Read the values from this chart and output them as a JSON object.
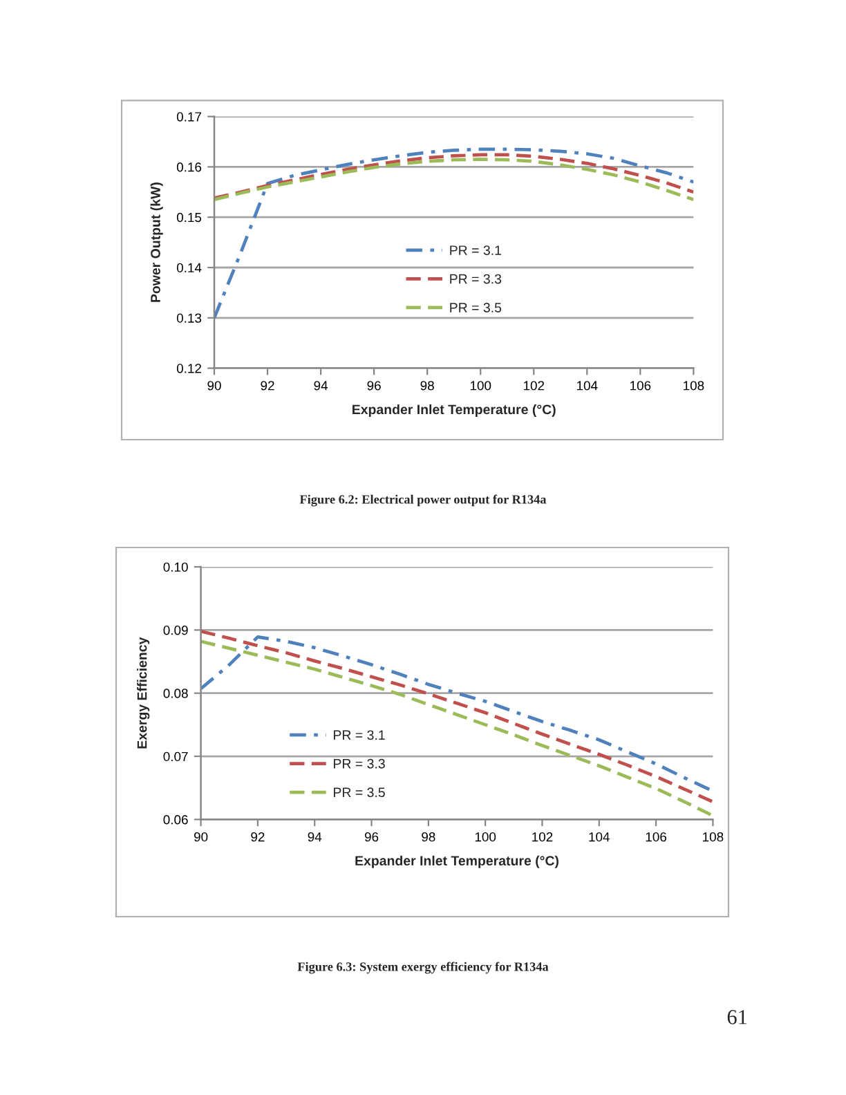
{
  "chart_data": [
    {
      "type": "line",
      "xlabel": "Expander Inlet Temperature (°C)",
      "ylabel": "Power Output (kW)",
      "x": [
        90,
        91,
        92,
        93,
        94,
        95,
        96,
        97,
        98,
        99,
        100,
        101,
        102,
        103,
        104,
        105,
        106,
        107,
        108
      ],
      "series": [
        {
          "name": "PR = 3.1",
          "color": "#4f81bd",
          "line_style": "dashdot",
          "values": [
            0.13,
            0.143,
            0.1567,
            0.1583,
            0.1594,
            0.1605,
            0.1614,
            0.1622,
            0.1629,
            0.1633,
            0.1635,
            0.1635,
            0.1634,
            0.1631,
            0.1626,
            0.1617,
            0.1602,
            0.1588,
            0.157
          ]
        },
        {
          "name": "PR = 3.3",
          "color": "#c0504d",
          "line_style": "dashed",
          "values": [
            0.1538,
            0.155,
            0.1563,
            0.1574,
            0.1585,
            0.1595,
            0.1604,
            0.1612,
            0.1618,
            0.1622,
            0.1624,
            0.1624,
            0.1621,
            0.1615,
            0.1607,
            0.1596,
            0.1583,
            0.1568,
            0.155
          ]
        },
        {
          "name": "PR = 3.5",
          "color": "#9bbb59",
          "line_style": "dashed",
          "values": [
            0.1535,
            0.1548,
            0.156,
            0.157,
            0.158,
            0.159,
            0.1599,
            0.1606,
            0.1611,
            0.1614,
            0.1615,
            0.1614,
            0.1611,
            0.1604,
            0.1595,
            0.1584,
            0.157,
            0.1553,
            0.1535
          ]
        }
      ],
      "xlim": [
        90,
        108
      ],
      "xticks": [
        90,
        92,
        94,
        96,
        98,
        100,
        102,
        104,
        106,
        108
      ],
      "ylim": [
        0.12,
        0.17
      ],
      "yticks": [
        0.12,
        0.13,
        0.14,
        0.15,
        0.16,
        0.17
      ],
      "grid": "y",
      "legend": "center",
      "annotations": [
        "Figure 6.2: Electrical power output for R134a"
      ]
    },
    {
      "type": "line",
      "xlabel": "Expander Inlet Temperature (°C)",
      "ylabel": "Exergy Efficiency",
      "x": [
        90,
        91,
        92,
        93,
        94,
        95,
        96,
        97,
        98,
        99,
        100,
        101,
        102,
        103,
        104,
        105,
        106,
        107,
        108
      ],
      "series": [
        {
          "name": "PR = 3.1",
          "color": "#4f81bd",
          "line_style": "dashdot",
          "values": [
            0.0807,
            0.0845,
            0.0889,
            0.0882,
            0.0872,
            0.0859,
            0.0845,
            0.083,
            0.0814,
            0.08,
            0.0787,
            0.0771,
            0.0755,
            0.0741,
            0.0726,
            0.0707,
            0.0688,
            0.0666,
            0.0645
          ]
        },
        {
          "name": "PR = 3.3",
          "color": "#c0504d",
          "line_style": "dashed",
          "values": [
            0.0898,
            0.0887,
            0.0875,
            0.0864,
            0.0851,
            0.0839,
            0.0826,
            0.0813,
            0.0799,
            0.0784,
            0.0769,
            0.0752,
            0.0735,
            0.0719,
            0.0703,
            0.0686,
            0.0668,
            0.0648,
            0.0628
          ]
        },
        {
          "name": "PR = 3.5",
          "color": "#9bbb59",
          "line_style": "dashed",
          "values": [
            0.0882,
            0.0871,
            0.086,
            0.0849,
            0.0838,
            0.0825,
            0.0812,
            0.0798,
            0.0782,
            0.0766,
            0.075,
            0.0734,
            0.0717,
            0.0701,
            0.0685,
            0.0667,
            0.0649,
            0.0628,
            0.0606
          ]
        }
      ],
      "xlim": [
        90,
        108
      ],
      "xticks": [
        90,
        92,
        94,
        96,
        98,
        100,
        102,
        104,
        106,
        108
      ],
      "ylim": [
        0.06,
        0.1
      ],
      "yticks": [
        0.06,
        0.07,
        0.08,
        0.09,
        {
          "value": 0.1,
          "label": "0.10"
        }
      ],
      "grid": "y",
      "legend": "bottom left",
      "annotations": [
        "Figure 6.3: System exergy efficiency for R134a",
        "61"
      ]
    }
  ]
}
